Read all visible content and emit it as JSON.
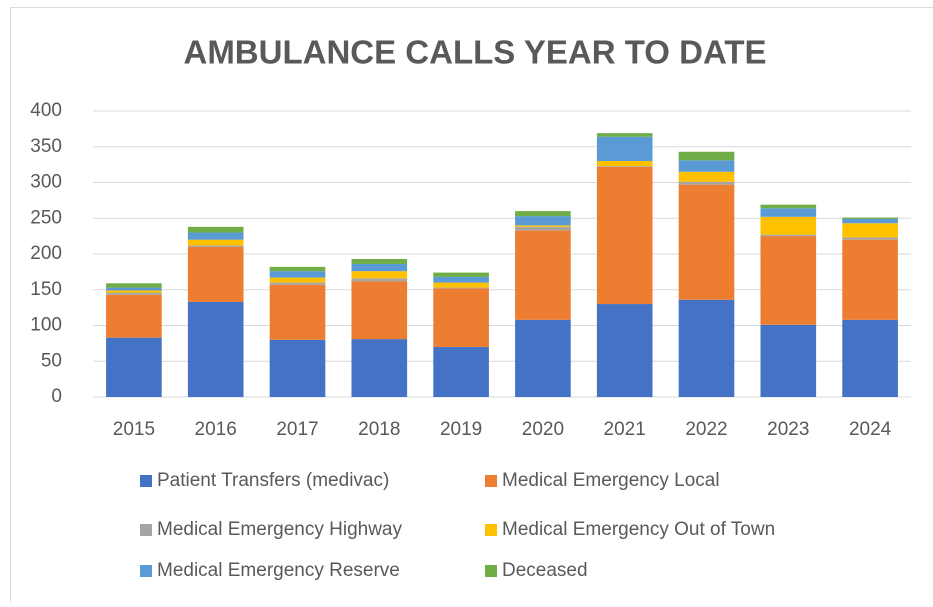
{
  "chart_data": {
    "type": "stacked_bar",
    "title": "AMBULANCE CALLS YEAR TO DATE",
    "categories": [
      "2015",
      "2016",
      "2017",
      "2018",
      "2019",
      "2020",
      "2021",
      "2022",
      "2023",
      "2024"
    ],
    "series": [
      {
        "name": "Patient Transfers (medivac)",
        "color": "#4472c4",
        "values": [
          83,
          133,
          80,
          81,
          70,
          108,
          130,
          136,
          101,
          108
        ]
      },
      {
        "name": "Medical Emergency Local",
        "color": "#ed7d31",
        "values": [
          60,
          77,
          77,
          81,
          82,
          125,
          192,
          161,
          124,
          112
        ]
      },
      {
        "name": "Medical Emergency Highway",
        "color": "#a5a5a5",
        "values": [
          3,
          2,
          3,
          4,
          1,
          5,
          1,
          4,
          2,
          3
        ]
      },
      {
        "name": "Medical Emergency Out of Town",
        "color": "#ffc000",
        "values": [
          3,
          8,
          7,
          10,
          7,
          2,
          7,
          14,
          25,
          20
        ]
      },
      {
        "name": "Medical Emergency Reserve",
        "color": "#5b9bd5",
        "values": [
          4,
          10,
          9,
          10,
          8,
          13,
          34,
          16,
          12,
          6
        ]
      },
      {
        "name": "Deceased",
        "color": "#70ad47",
        "values": [
          6,
          8,
          6,
          7,
          6,
          7,
          5,
          12,
          5,
          2
        ]
      }
    ],
    "ylim": [
      0,
      400
    ],
    "yticks": [
      0,
      50,
      100,
      150,
      200,
      250,
      300,
      350,
      400
    ],
    "grid": true,
    "legend": "bottom"
  }
}
